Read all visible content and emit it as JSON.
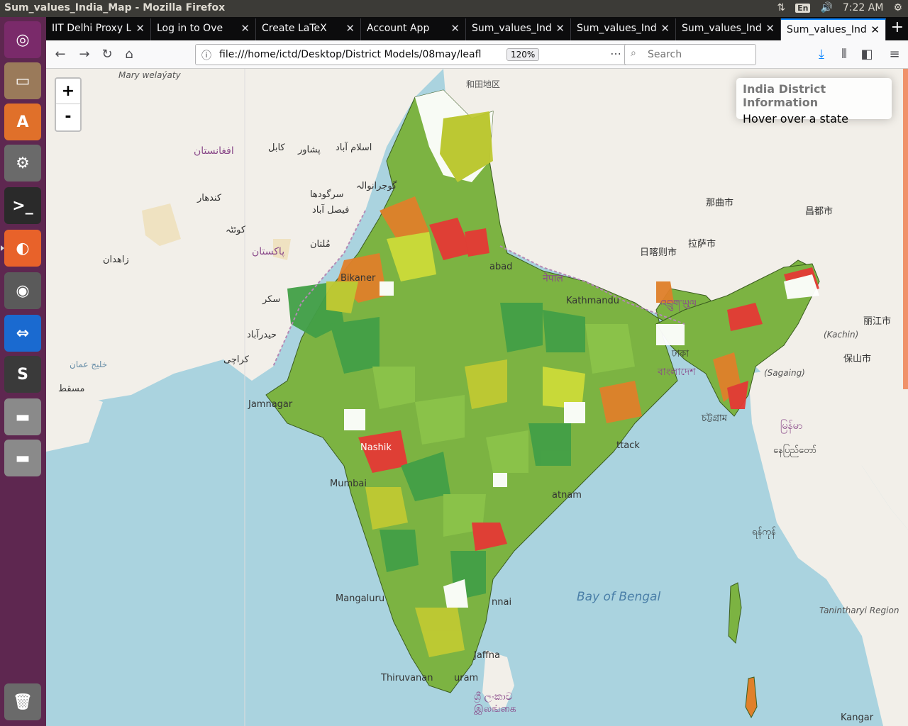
{
  "window": {
    "title": "Sum_values_India_Map - Mozilla Firefox"
  },
  "panel": {
    "lang": "En",
    "time": "7:22 AM"
  },
  "launcher": {
    "items": [
      {
        "name": "ubuntu-dash-icon",
        "color": "#7a2a6a",
        "glyph": "◎"
      },
      {
        "name": "files-icon",
        "color": "#9a7a5a",
        "glyph": "▭"
      },
      {
        "name": "software-center-icon",
        "color": "#e0702a",
        "glyph": "A"
      },
      {
        "name": "system-settings-icon",
        "color": "#6a6a6a",
        "glyph": "⚙"
      },
      {
        "name": "terminal-icon",
        "color": "#2a2a2a",
        "glyph": ">_"
      },
      {
        "name": "firefox-icon",
        "color": "#e8622a",
        "glyph": "◐"
      },
      {
        "name": "chromium-icon",
        "color": "#5a5a5a",
        "glyph": "◉"
      },
      {
        "name": "teamviewer-icon",
        "color": "#1a6ad0",
        "glyph": "⇔"
      },
      {
        "name": "sublime-text-icon",
        "color": "#3a3a3a",
        "glyph": "S"
      },
      {
        "name": "disk-drive-icon",
        "color": "#8a8a8a",
        "glyph": "▬"
      },
      {
        "name": "disk-drive-2-icon",
        "color": "#8a8a8a",
        "glyph": "▬"
      },
      {
        "name": "trash-icon",
        "color": "#6a6a6a",
        "glyph": "🗑"
      }
    ]
  },
  "tabs": [
    {
      "label": "IIT Delhi Proxy L",
      "icon": ""
    },
    {
      "label": "Log in to Ove",
      "icon": "✎"
    },
    {
      "label": "Create LaTeX",
      "icon": "▦"
    },
    {
      "label": "Account App",
      "icon": "▤"
    },
    {
      "label": "Sum_values_Ind",
      "icon": ""
    },
    {
      "label": "Sum_values_Ind",
      "icon": ""
    },
    {
      "label": "Sum_values_Ind",
      "icon": ""
    },
    {
      "label": "Sum_values_Ind",
      "icon": "",
      "active": true
    }
  ],
  "toolbar": {
    "url": "file:///home/ictd/Desktop/District Models/08may/leafl",
    "zoom": "120%",
    "search_placeholder": "Search"
  },
  "map": {
    "zoom_in": "+",
    "zoom_out": "-",
    "info_title": "India District Information",
    "info_hint": "Hover over a state",
    "labels": {
      "hotan": "和田地区",
      "mary": "Mary welaýaty",
      "afghanistan": "افغانستان",
      "kabul": "کابل",
      "peshawar": "پشاور",
      "islamabad": "اسلام آباد",
      "gujranwala": "گوجرانوالہ",
      "sargodha": "سرگودھا",
      "faisalabad": "فيصل آباد",
      "kandahar": "کندهار",
      "quetta": "کوئٹہ",
      "multan": "مُلتان",
      "pakistan": "پاکستان",
      "zahedan": "زاهدان",
      "sukkur": "سکر",
      "hyderabad_pk": "حیدرآباد",
      "karachi": "کراچی",
      "gulf_oman": "خليج عمان",
      "muscat": "مسقط",
      "bikaner": "Bikaner",
      "jamnagar": "Jamnagar",
      "mumbai": "Mumbai",
      "nashik": "Nashik",
      "mangaluru": "Mangaluru",
      "thiruvananthapuram": "Thiruvanan",
      "thiruvananthapuram_tail": "uram",
      "jaffna": "Jaffna",
      "chennai": "nnai",
      "sri_lanka_si": "ශ්‍රී ලංකාව",
      "sri_lanka_ta": "இலங்கை",
      "bay_of_bengal": "Bay of Bengal",
      "nepal": "नेपाल",
      "kathmandu": "Kathmandu",
      "nagqu": "那曲市",
      "lhasa": "拉萨市",
      "shigatse": "日喀则市",
      "qamdo": "昌都市",
      "lijiang": "丽江市",
      "baoshan": "保山市",
      "bhutan": "འབྲུག་ཡུལ",
      "bangladesh": "বাংলাদেশ",
      "dhaka": "ঢাকা",
      "chattogram": "চট্টগ্রাম",
      "kachin": "(Kachin)",
      "sagaing": "(Sagaing)",
      "myanmar": "မြန်မာ",
      "naypyidaw": "နေပြည်တော်",
      "yangon": "ရန်ကုန်",
      "tanintharyi": "Tanintharyi Region",
      "kangar": "Kangar",
      "cuttack": "ttack",
      "visakhapatnam": "atnam",
      "abad": "abad"
    }
  }
}
